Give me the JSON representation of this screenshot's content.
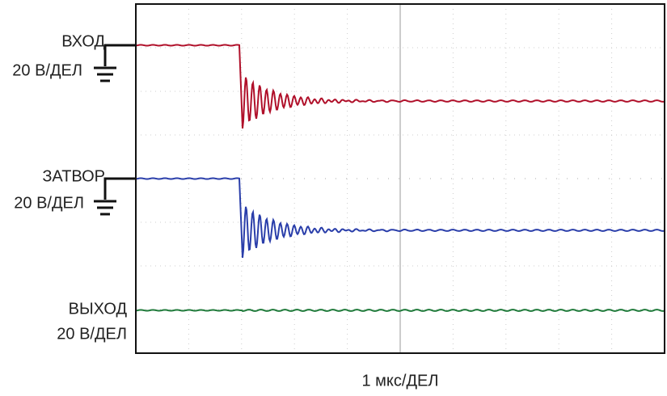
{
  "channels": [
    {
      "name": "ВХОД",
      "scale": "20 В/ДЕЛ"
    },
    {
      "name": "ЗАТВОР",
      "scale": "20 В/ДЕЛ"
    },
    {
      "name": "ВЫХОД",
      "scale": "20 В/ДЕЛ"
    }
  ],
  "timebase": "1 мкс/ДЕЛ"
}
